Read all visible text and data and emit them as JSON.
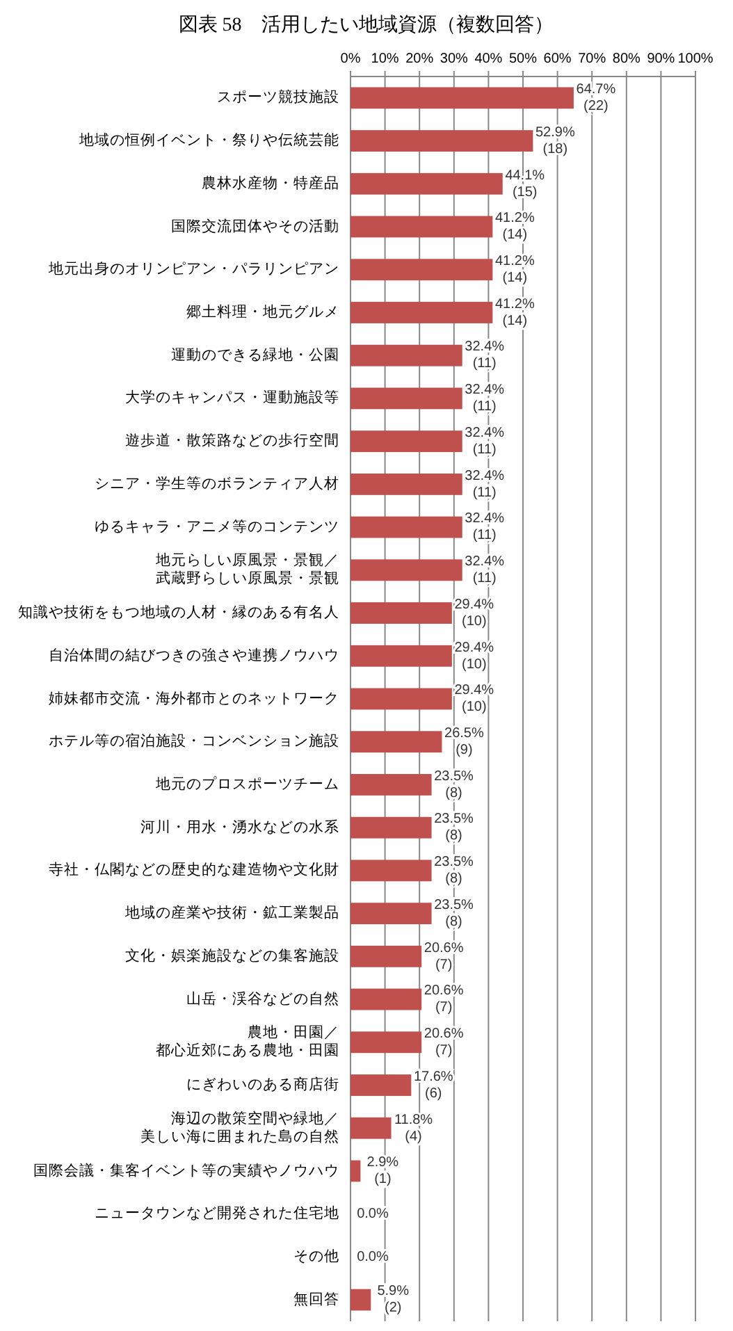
{
  "chart_data": {
    "type": "bar",
    "orientation": "horizontal",
    "title": "図表 58　活用したい地域資源（複数回答）",
    "categories": [
      "スポーツ競技施設",
      "地域の恒例イベント・祭りや伝統芸能",
      "農林水産物・特産品",
      "国際交流団体やその活動",
      "地元出身のオリンピアン・パラリンピアン",
      "郷土料理・地元グルメ",
      "運動のできる緑地・公園",
      "大学のキャンパス・運動施設等",
      "遊歩道・散策路などの歩行空間",
      "シニア・学生等のボランティア人材",
      "ゆるキャラ・アニメ等のコンテンツ",
      "地元らしい原風景・景観／武蔵野らしい原風景・景観",
      "知識や技術をもつ地域の人材・縁のある有名人",
      "自治体間の結びつきの強さや連携ノウハウ",
      "姉妹都市交流・海外都市とのネットワーク",
      "ホテル等の宿泊施設・コンベンション施設",
      "地元のプロスポーツチーム",
      "河川・用水・湧水などの水系",
      "寺社・仏閣などの歴史的な建造物や文化財",
      "地域の産業や技術・鉱工業製品",
      "文化・娯楽施設などの集客施設",
      "山岳・渓谷などの自然",
      "農地・田園／都心近郊にある農地・田園",
      "にぎわいのある商店街",
      "海辺の散策空間や緑地／美しい海に囲まれた島の自然",
      "国際会議・集客イベント等の実績やノウハウ",
      "ニュータウンなど開発された住宅地",
      "その他",
      "無回答"
    ],
    "values": [
      64.7,
      52.9,
      44.1,
      41.2,
      41.2,
      41.2,
      32.4,
      32.4,
      32.4,
      32.4,
      32.4,
      32.4,
      29.4,
      29.4,
      29.4,
      26.5,
      23.5,
      23.5,
      23.5,
      23.5,
      20.6,
      20.6,
      20.6,
      17.6,
      11.8,
      2.9,
      0.0,
      0.0,
      5.9
    ],
    "value_labels": [
      "64.7%\n(22)",
      "52.9%\n(18)",
      "44.1%\n(15)",
      "41.2%\n(14)",
      "41.2%\n(14)",
      "41.2%\n(14)",
      "32.4%\n(11)",
      "32.4%\n(11)",
      "32.4%\n(11)",
      "32.4%\n(11)",
      "32.4%\n(11)",
      "32.4%\n(11)",
      "29.4%\n(10)",
      "29.4%\n(10)",
      "29.4%\n(10)",
      "26.5%\n(9)",
      "23.5%\n(8)",
      "23.5%\n(8)",
      "23.5%\n(8)",
      "23.5%\n(8)",
      "20.6%\n(7)",
      "20.6%\n(7)",
      "20.6%\n(7)",
      "17.6%\n(6)",
      "11.8%\n(4)",
      "2.9%\n(1)",
      "0.0%",
      "0.0%",
      "5.9%\n(2)"
    ],
    "color": "#c0504d",
    "xlim": [
      0,
      100
    ],
    "xticks": [
      {
        "value": 0,
        "label": "0%"
      },
      {
        "value": 10,
        "label": "10%"
      },
      {
        "value": 20,
        "label": "20%"
      },
      {
        "value": 30,
        "label": "30%"
      },
      {
        "value": 40,
        "label": "40%"
      },
      {
        "value": 50,
        "label": "50%"
      },
      {
        "value": 60,
        "label": "60%"
      },
      {
        "value": 70,
        "label": "70%"
      },
      {
        "value": 80,
        "label": "80%"
      },
      {
        "value": 90,
        "label": "90%"
      },
      {
        "value": 100,
        "label": "100%"
      }
    ],
    "grid": "x"
  }
}
